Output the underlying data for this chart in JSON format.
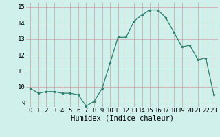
{
  "x": [
    0,
    1,
    2,
    3,
    4,
    5,
    6,
    7,
    8,
    9,
    10,
    11,
    12,
    13,
    14,
    15,
    16,
    17,
    18,
    19,
    20,
    21,
    22,
    23
  ],
  "y": [
    9.9,
    9.6,
    9.7,
    9.7,
    9.6,
    9.6,
    9.5,
    8.8,
    9.1,
    9.9,
    11.5,
    13.1,
    13.1,
    14.1,
    14.5,
    14.8,
    14.8,
    14.3,
    13.4,
    12.5,
    12.6,
    11.7,
    11.8,
    9.5
  ],
  "line_color": "#2d7d6e",
  "marker": "o",
  "marker_size": 2.0,
  "xlabel": "Humidex (Indice chaleur)",
  "xlim": [
    -0.5,
    23.5
  ],
  "ylim": [
    8.75,
    15.25
  ],
  "yticks": [
    9,
    10,
    11,
    12,
    13,
    14,
    15
  ],
  "xticks": [
    0,
    1,
    2,
    3,
    4,
    5,
    6,
    7,
    8,
    9,
    10,
    11,
    12,
    13,
    14,
    15,
    16,
    17,
    18,
    19,
    20,
    21,
    22,
    23
  ],
  "grid_color": "#c8a0a0",
  "bg_color": "#cff0eb",
  "tick_fontsize": 6.5,
  "xlabel_fontsize": 7.5
}
